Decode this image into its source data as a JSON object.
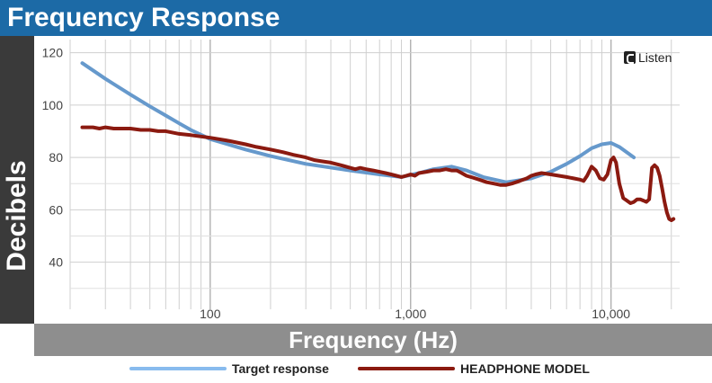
{
  "title": "Frequency Response",
  "brand": {
    "logo_icon": "listen-logo-icon",
    "name": "Listen"
  },
  "chart_data": {
    "type": "line",
    "title": "Frequency Response",
    "xlabel": "Frequency (Hz)",
    "ylabel": "Decibels",
    "xscale": "log",
    "xlim": [
      20,
      22000
    ],
    "ylim": [
      22,
      125
    ],
    "grid": true,
    "legend_position": "bottom",
    "x_ticks": [
      {
        "value": 100,
        "label": "100"
      },
      {
        "value": 1000,
        "label": "1,000"
      },
      {
        "value": 10000,
        "label": "10,000"
      }
    ],
    "y_ticks": [
      {
        "value": 40,
        "label": "40"
      },
      {
        "value": 60,
        "label": "60"
      },
      {
        "value": 80,
        "label": "80"
      },
      {
        "value": 100,
        "label": "100"
      },
      {
        "value": 120,
        "label": "120"
      }
    ],
    "series": [
      {
        "name": "Target response",
        "color": "#6699cc",
        "x": [
          23,
          30,
          40,
          50,
          60,
          70,
          80,
          100,
          150,
          200,
          300,
          500,
          700,
          900,
          1100,
          1300,
          1600,
          1900,
          2300,
          3000,
          4000,
          5000,
          6000,
          7000,
          8000,
          9000,
          10000,
          11000,
          13000
        ],
        "y": [
          116,
          110,
          104,
          99.5,
          96,
          93,
          90.5,
          87,
          83,
          80.5,
          77.5,
          75,
          73.5,
          72.5,
          74,
          75.5,
          76.5,
          75,
          72.5,
          70.5,
          72,
          74.5,
          77.5,
          80.5,
          83.5,
          85,
          85.5,
          84,
          80
        ]
      },
      {
        "name": "HEADPHONE MODEL",
        "color": "#8b1a10",
        "x": [
          23,
          26,
          28,
          30,
          33,
          36,
          40,
          45,
          50,
          55,
          60,
          70,
          80,
          90,
          100,
          110,
          120,
          130,
          150,
          170,
          200,
          230,
          260,
          300,
          330,
          360,
          400,
          450,
          500,
          530,
          560,
          600,
          650,
          700,
          750,
          800,
          850,
          900,
          950,
          1000,
          1050,
          1100,
          1200,
          1300,
          1400,
          1500,
          1600,
          1700,
          1800,
          1900,
          2000,
          2200,
          2400,
          2600,
          2800,
          3000,
          3200,
          3500,
          3800,
          4000,
          4200,
          4500,
          5000,
          5500,
          6000,
          6500,
          7000,
          7300,
          7600,
          8000,
          8400,
          8800,
          9200,
          9600,
          10000,
          10300,
          10600,
          11000,
          11500,
          12000,
          12500,
          13000,
          13500,
          14000,
          14500,
          15000,
          15500,
          16000,
          16500,
          17000,
          17500,
          18000,
          18500,
          19000,
          19500,
          20000,
          20500
        ],
        "y": [
          91.5,
          91.5,
          91,
          91.5,
          91,
          91,
          91,
          90.5,
          90.5,
          90,
          90,
          89,
          88.5,
          88,
          87.5,
          87,
          86.5,
          86,
          85,
          84,
          83,
          82,
          81,
          80,
          79,
          78.5,
          78,
          77,
          76,
          75.5,
          76,
          75.5,
          75,
          74.5,
          74,
          73.5,
          73,
          72.5,
          73,
          73.5,
          73,
          74,
          74.5,
          75,
          75,
          75.5,
          75,
          75,
          74,
          73,
          72.5,
          71.5,
          70.5,
          70,
          69.5,
          69.5,
          70,
          71,
          72,
          73,
          73.5,
          74,
          73.5,
          73,
          72.5,
          72,
          71.5,
          71,
          73,
          76.5,
          75,
          72,
          71.5,
          73.5,
          79,
          80,
          78,
          70,
          64.5,
          63.5,
          62.5,
          63,
          64,
          64,
          63.5,
          63,
          64,
          76,
          77,
          76,
          73,
          68,
          63,
          59,
          56.5,
          56,
          56.5
        ]
      }
    ]
  }
}
